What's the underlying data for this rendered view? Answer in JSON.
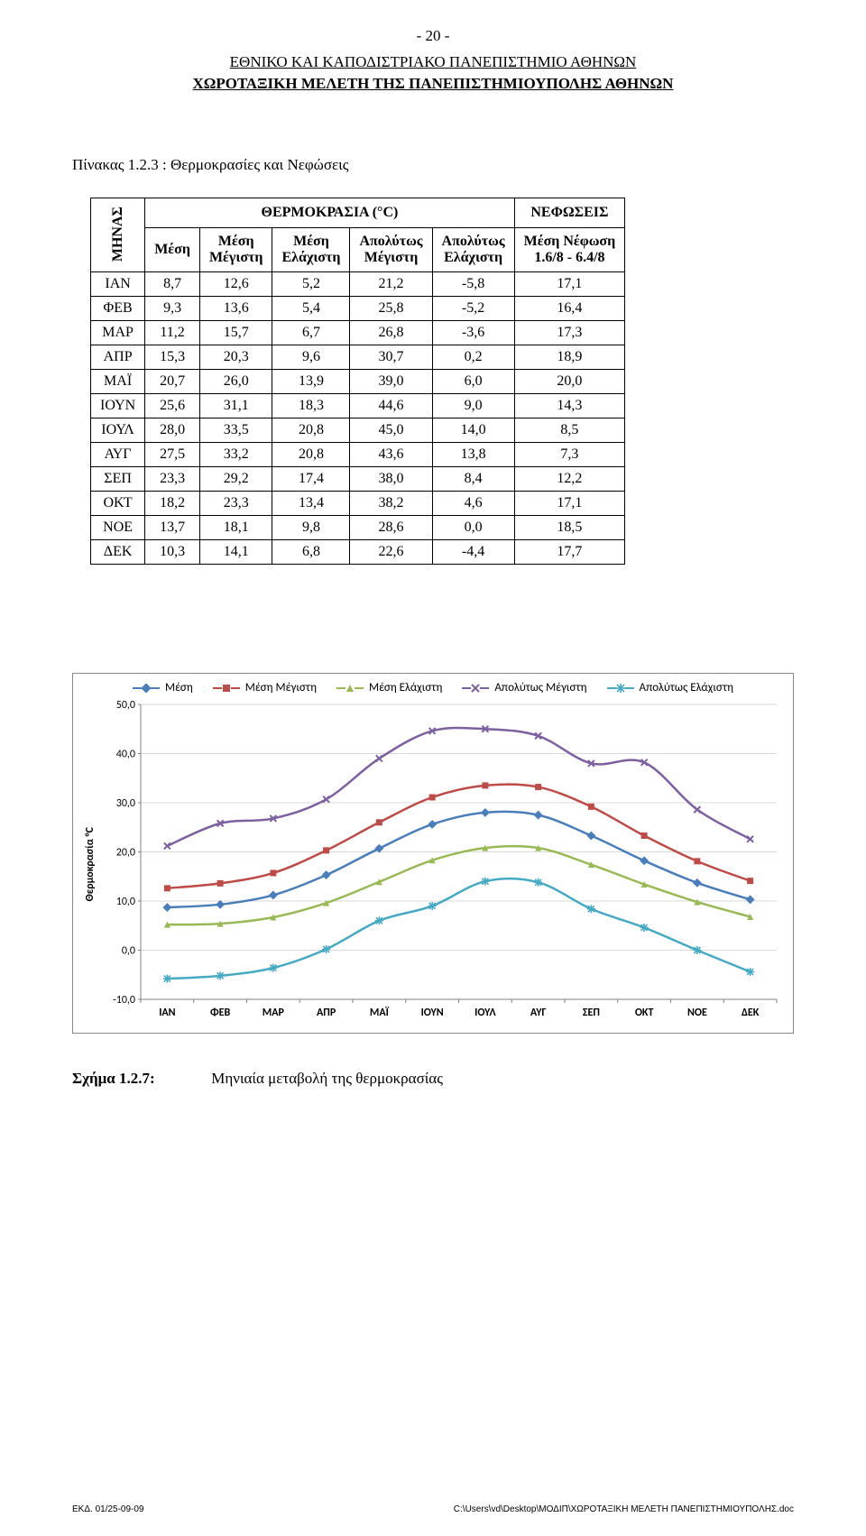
{
  "page_number_text": "- 20 -",
  "header_line1": "ΕΘΝΙΚΟ ΚΑΙ ΚΑΠΟΔΙΣΤΡΙΑΚΟ ΠΑΝΕΠΙΣΤΗΜΙΟ ΑΘΗΝΩΝ",
  "header_line2": "ΧΩΡΟΤΑΞΙΚΗ ΜΕΛΕΤΗ ΤΗΣ ΠΑΝΕΠΙΣΤΗΜΙΟΥΠΟΛΗΣ ΑΘΗΝΩΝ",
  "table_caption": "Πίνακας 1.2.3 : Θερμοκρασίες και Νεφώσεις",
  "table": {
    "row_header_label": "ΜΗΝΑΣ",
    "group_labels": {
      "temp": "ΘΕΡΜΟΚΡΑΣΙΑ (°C)",
      "cloud": "ΝΕΦΩΣΕΙΣ"
    },
    "columns": [
      "Μέση",
      "Μέση Μέγιστη",
      "Μέση Ελάχιστη",
      "Απολύτως Μέγιστη",
      "Απολύτως Ελάχιστη",
      "Μέση Νέφωση 1.6/8 - 6.4/8"
    ],
    "months": [
      "ΙΑΝ",
      "ΦΕΒ",
      "ΜΑΡ",
      "ΑΠΡ",
      "ΜΑΪ",
      "ΙΟΥΝ",
      "ΙΟΥΛ",
      "ΑΥΓ",
      "ΣΕΠ",
      "ΟΚΤ",
      "ΝΟΕ",
      "ΔΕΚ"
    ],
    "rows": [
      [
        "8,7",
        "12,6",
        "5,2",
        "21,2",
        "-5,8",
        "17,1"
      ],
      [
        "9,3",
        "13,6",
        "5,4",
        "25,8",
        "-5,2",
        "16,4"
      ],
      [
        "11,2",
        "15,7",
        "6,7",
        "26,8",
        "-3,6",
        "17,3"
      ],
      [
        "15,3",
        "20,3",
        "9,6",
        "30,7",
        "0,2",
        "18,9"
      ],
      [
        "20,7",
        "26,0",
        "13,9",
        "39,0",
        "6,0",
        "20,0"
      ],
      [
        "25,6",
        "31,1",
        "18,3",
        "44,6",
        "9,0",
        "14,3"
      ],
      [
        "28,0",
        "33,5",
        "20,8",
        "45,0",
        "14,0",
        "8,5"
      ],
      [
        "27,5",
        "33,2",
        "20,8",
        "43,6",
        "13,8",
        "7,3"
      ],
      [
        "23,3",
        "29,2",
        "17,4",
        "38,0",
        "8,4",
        "12,2"
      ],
      [
        "18,2",
        "23,3",
        "13,4",
        "38,2",
        "4,6",
        "17,1"
      ],
      [
        "13,7",
        "18,1",
        "9,8",
        "28,6",
        "0,0",
        "18,5"
      ],
      [
        "10,3",
        "14,1",
        "6,8",
        "22,6",
        "-4,4",
        "17,7"
      ]
    ]
  },
  "chart": {
    "type": "line",
    "ylabel": "Θερμοκρασία °C",
    "categories": [
      "ΙΑΝ",
      "ΦΕΒ",
      "ΜΑΡ",
      "ΑΠΡ",
      "ΜΑΪ",
      "ΙΟΥΝ",
      "ΙΟΥΛ",
      "ΑΥΓ",
      "ΣΕΠ",
      "ΟΚΤ",
      "ΝΟΕ",
      "ΔΕΚ"
    ],
    "ylim": [
      -10,
      50
    ],
    "ytick_step": 10,
    "yticks": [
      "-10,0",
      "0,0",
      "10,0",
      "20,0",
      "30,0",
      "40,0",
      "50,0"
    ],
    "grid_color": "#d9d9d9",
    "axis_color": "#808080",
    "plot_bg": "#ffffff",
    "plot_border_color": "#888888",
    "series": [
      {
        "name": "Μέση",
        "color": "#4a7ebb",
        "marker": "diamond",
        "values": [
          8.7,
          9.3,
          11.2,
          15.3,
          20.7,
          25.6,
          28.0,
          27.5,
          23.3,
          18.2,
          13.7,
          10.3
        ]
      },
      {
        "name": "Μέση Μέγιστη",
        "color": "#be4b48",
        "marker": "square",
        "values": [
          12.6,
          13.6,
          15.7,
          20.3,
          26.0,
          31.1,
          33.5,
          33.2,
          29.2,
          23.3,
          18.1,
          14.1
        ]
      },
      {
        "name": "Μέση Ελάχιστη",
        "color": "#98b954",
        "marker": "triangle",
        "values": [
          5.2,
          5.4,
          6.7,
          9.6,
          13.9,
          18.3,
          20.8,
          20.8,
          17.4,
          13.4,
          9.8,
          6.8
        ]
      },
      {
        "name": "Απολύτως Μέγιστη",
        "color": "#7d60a0",
        "marker": "cross",
        "values": [
          21.2,
          25.8,
          26.8,
          30.7,
          39.0,
          44.6,
          45.0,
          43.6,
          38.0,
          38.2,
          28.6,
          22.6
        ]
      },
      {
        "name": "Απολύτως Ελάχιστη",
        "color": "#46aac5",
        "marker": "star",
        "values": [
          -5.8,
          -5.2,
          -3.6,
          0.2,
          6.0,
          9.0,
          14.0,
          13.8,
          8.4,
          4.6,
          0.0,
          -4.4
        ]
      }
    ],
    "legend_fontsize": 13,
    "tick_fontsize": 12,
    "line_width": 2.5,
    "marker_size": 7,
    "smooth": true
  },
  "figure_caption": {
    "label": "Σχήμα 1.2.7:",
    "text": "Μηνιαία μεταβολή της θερμοκρασίας"
  },
  "footer": {
    "left": "ΕΚΔ. 01/25-09-09",
    "right": "C:\\Users\\vd\\Desktop\\ΜΟΔΙΠ\\ΧΩΡΟΤΑΞΙΚΗ ΜΕΛΕΤΗ ΠΑΝΕΠΙΣΤΗΜΙΟΥΠΟΛΗΣ.doc"
  }
}
